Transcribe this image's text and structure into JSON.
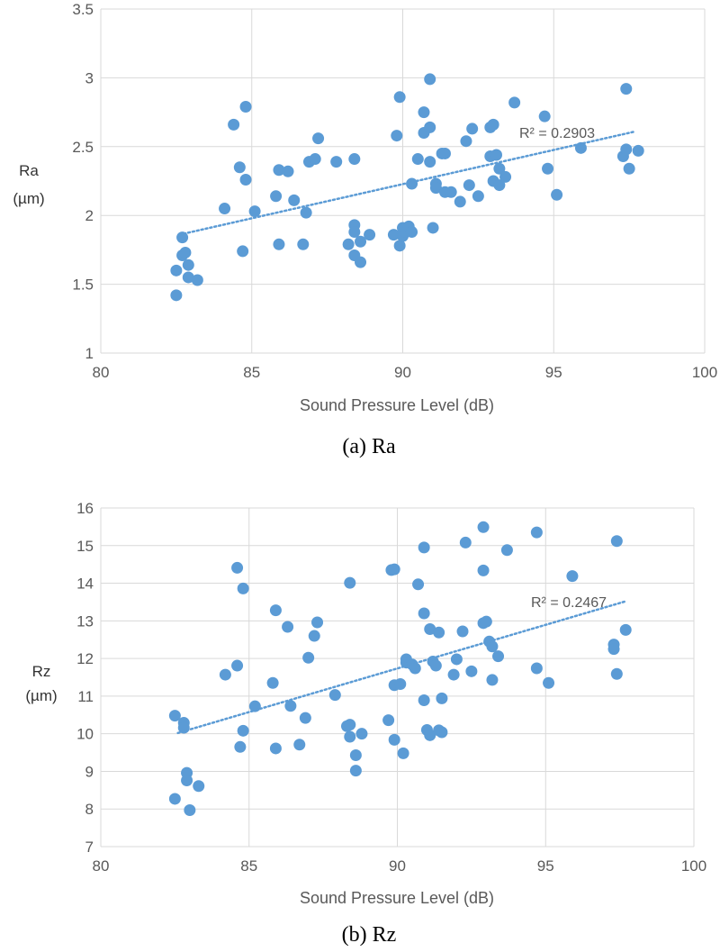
{
  "chart_data": [
    {
      "type": "scatter",
      "ylabel_line1": "Ra",
      "ylabel_line2": "(µm)",
      "xlabel": "Sound Pressure Level (dB)",
      "caption": "(a)  Ra",
      "r2_label": "R² = 0.2903",
      "xlim": [
        80,
        100
      ],
      "ylim": [
        1,
        3.5
      ],
      "xticks": [
        "80",
        "85",
        "90",
        "95",
        "100"
      ],
      "yticks": [
        "1",
        "1.5",
        "2",
        "2.5",
        "3",
        "3.5"
      ],
      "grid": true,
      "point_color": "#5B9BD5",
      "trend_color": "#5B9BD5",
      "trendline": {
        "x": [
          82.6,
          97.7
        ],
        "y": [
          1.86,
          2.61
        ]
      },
      "points": [
        [
          82.5,
          1.6
        ],
        [
          82.5,
          1.42
        ],
        [
          82.7,
          1.84
        ],
        [
          82.7,
          1.71
        ],
        [
          82.8,
          1.73
        ],
        [
          82.9,
          1.64
        ],
        [
          82.9,
          1.55
        ],
        [
          83.2,
          1.53
        ],
        [
          84.1,
          2.05
        ],
        [
          84.4,
          2.66
        ],
        [
          84.6,
          2.35
        ],
        [
          84.7,
          1.74
        ],
        [
          84.8,
          2.79
        ],
        [
          84.8,
          2.26
        ],
        [
          85.1,
          2.03
        ],
        [
          85.8,
          2.14
        ],
        [
          85.9,
          2.33
        ],
        [
          85.9,
          1.79
        ],
        [
          86.2,
          2.32
        ],
        [
          86.4,
          2.11
        ],
        [
          86.7,
          1.79
        ],
        [
          86.8,
          2.02
        ],
        [
          86.9,
          2.39
        ],
        [
          87.1,
          2.41
        ],
        [
          87.2,
          2.56
        ],
        [
          87.8,
          2.39
        ],
        [
          88.2,
          1.79
        ],
        [
          88.4,
          2.41
        ],
        [
          88.4,
          1.93
        ],
        [
          88.4,
          1.88
        ],
        [
          88.4,
          1.71
        ],
        [
          88.6,
          1.66
        ],
        [
          88.6,
          1.81
        ],
        [
          88.9,
          1.86
        ],
        [
          89.7,
          1.86
        ],
        [
          89.8,
          2.58
        ],
        [
          89.9,
          2.86
        ],
        [
          89.9,
          1.78
        ],
        [
          90.0,
          1.91
        ],
        [
          90.0,
          1.85
        ],
        [
          90.1,
          1.88
        ],
        [
          90.2,
          1.92
        ],
        [
          90.3,
          2.23
        ],
        [
          90.3,
          1.88
        ],
        [
          90.5,
          2.41
        ],
        [
          90.7,
          2.75
        ],
        [
          90.7,
          2.6
        ],
        [
          90.9,
          2.99
        ],
        [
          90.9,
          2.64
        ],
        [
          90.9,
          2.39
        ],
        [
          91.0,
          1.91
        ],
        [
          91.1,
          2.23
        ],
        [
          91.1,
          2.2
        ],
        [
          91.3,
          2.45
        ],
        [
          91.4,
          2.17
        ],
        [
          91.4,
          2.45
        ],
        [
          91.6,
          2.17
        ],
        [
          91.9,
          2.1
        ],
        [
          92.1,
          2.54
        ],
        [
          92.2,
          2.22
        ],
        [
          92.3,
          2.63
        ],
        [
          92.5,
          2.14
        ],
        [
          92.9,
          2.43
        ],
        [
          92.9,
          2.64
        ],
        [
          93.0,
          2.66
        ],
        [
          93.0,
          2.25
        ],
        [
          93.1,
          2.44
        ],
        [
          93.2,
          2.34
        ],
        [
          93.2,
          2.22
        ],
        [
          93.4,
          2.28
        ],
        [
          93.7,
          2.82
        ],
        [
          94.7,
          2.72
        ],
        [
          94.8,
          2.34
        ],
        [
          95.1,
          2.15
        ],
        [
          95.9,
          2.49
        ],
        [
          97.3,
          2.43
        ],
        [
          97.4,
          2.48
        ],
        [
          97.4,
          2.92
        ],
        [
          97.5,
          2.34
        ],
        [
          97.8,
          2.47
        ]
      ]
    },
    {
      "type": "scatter",
      "ylabel_line1": "Rz",
      "ylabel_line2": "(µm)",
      "xlabel": "Sound Pressure Level (dB)",
      "caption": "(b)  Rz",
      "r2_label": "R² = 0.2467",
      "xlim": [
        80,
        100
      ],
      "ylim": [
        7,
        16
      ],
      "xticks": [
        "80",
        "85",
        "90",
        "95",
        "100"
      ],
      "yticks": [
        "7",
        "8",
        "9",
        "10",
        "11",
        "12",
        "13",
        "14",
        "15",
        "16"
      ],
      "grid": true,
      "point_color": "#5B9BD5",
      "trend_color": "#5B9BD5",
      "trendline": {
        "x": [
          82.6,
          97.7
        ],
        "y": [
          10.02,
          13.52
        ]
      },
      "points": [
        [
          82.5,
          10.48
        ],
        [
          82.5,
          8.27
        ],
        [
          82.8,
          10.29
        ],
        [
          82.8,
          10.16
        ],
        [
          82.9,
          8.96
        ],
        [
          82.9,
          8.76
        ],
        [
          83.0,
          7.97
        ],
        [
          83.3,
          8.61
        ],
        [
          84.2,
          11.57
        ],
        [
          84.6,
          14.41
        ],
        [
          84.6,
          11.81
        ],
        [
          84.7,
          9.65
        ],
        [
          84.8,
          13.86
        ],
        [
          84.8,
          10.08
        ],
        [
          85.2,
          10.73
        ],
        [
          85.8,
          11.35
        ],
        [
          85.9,
          13.28
        ],
        [
          85.9,
          9.61
        ],
        [
          86.3,
          12.84
        ],
        [
          86.4,
          10.74
        ],
        [
          86.7,
          9.71
        ],
        [
          86.9,
          10.42
        ],
        [
          87.0,
          12.02
        ],
        [
          87.2,
          12.6
        ],
        [
          87.3,
          12.96
        ],
        [
          87.9,
          11.03
        ],
        [
          88.3,
          10.2
        ],
        [
          88.4,
          14.01
        ],
        [
          88.4,
          10.24
        ],
        [
          88.4,
          9.92
        ],
        [
          88.6,
          9.02
        ],
        [
          88.6,
          9.43
        ],
        [
          88.8,
          10.0
        ],
        [
          89.7,
          10.36
        ],
        [
          89.8,
          14.35
        ],
        [
          89.9,
          14.37
        ],
        [
          89.9,
          9.84
        ],
        [
          89.9,
          11.29
        ],
        [
          90.1,
          11.32
        ],
        [
          90.2,
          9.48
        ],
        [
          90.3,
          11.98
        ],
        [
          90.3,
          11.89
        ],
        [
          90.5,
          11.84
        ],
        [
          90.6,
          11.74
        ],
        [
          90.7,
          13.97
        ],
        [
          90.9,
          14.95
        ],
        [
          90.9,
          13.2
        ],
        [
          90.9,
          10.89
        ],
        [
          91.0,
          10.1
        ],
        [
          91.1,
          12.78
        ],
        [
          91.1,
          9.96
        ],
        [
          91.2,
          11.92
        ],
        [
          91.3,
          11.81
        ],
        [
          91.4,
          12.69
        ],
        [
          91.4,
          10.09
        ],
        [
          91.5,
          10.94
        ],
        [
          91.5,
          10.04
        ],
        [
          91.9,
          11.57
        ],
        [
          92.0,
          11.98
        ],
        [
          92.2,
          12.72
        ],
        [
          92.3,
          15.08
        ],
        [
          92.5,
          11.66
        ],
        [
          92.9,
          15.49
        ],
        [
          92.9,
          12.94
        ],
        [
          92.9,
          14.34
        ],
        [
          93.0,
          12.98
        ],
        [
          93.1,
          12.45
        ],
        [
          93.2,
          12.32
        ],
        [
          93.2,
          11.43
        ],
        [
          93.4,
          12.06
        ],
        [
          93.7,
          14.88
        ],
        [
          94.7,
          15.35
        ],
        [
          94.7,
          11.74
        ],
        [
          95.1,
          11.35
        ],
        [
          95.9,
          14.19
        ],
        [
          97.3,
          12.37
        ],
        [
          97.3,
          12.25
        ],
        [
          97.4,
          15.12
        ],
        [
          97.4,
          11.59
        ],
        [
          97.7,
          12.76
        ]
      ]
    }
  ]
}
